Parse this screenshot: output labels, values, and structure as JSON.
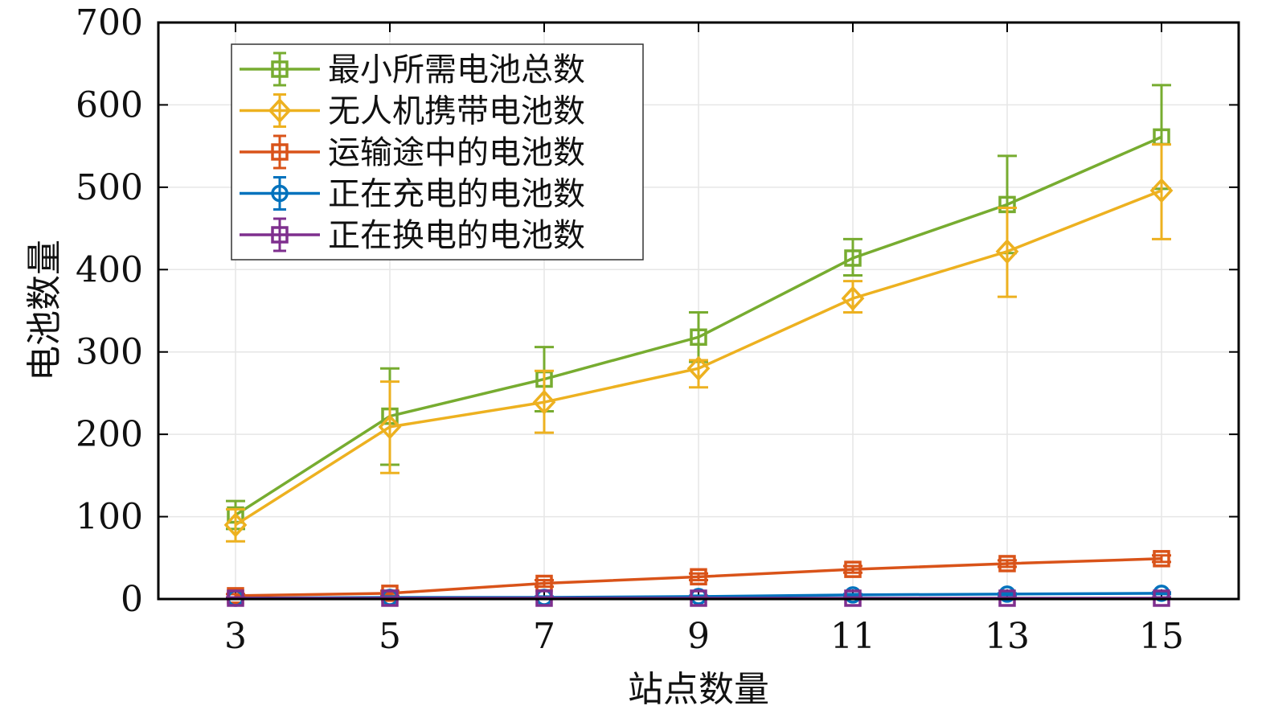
{
  "chart_data": {
    "type": "line",
    "title": "",
    "xlabel": "站点数量",
    "ylabel": "电池数量",
    "xlim": [
      2,
      16
    ],
    "ylim": [
      0,
      700
    ],
    "xticks": [
      3,
      5,
      7,
      9,
      11,
      13,
      15
    ],
    "yticks": [
      0,
      100,
      200,
      300,
      400,
      500,
      600,
      700
    ],
    "grid": true,
    "legend_position": "top-left",
    "x": [
      3,
      5,
      7,
      9,
      11,
      13,
      15
    ],
    "series": [
      {
        "name": "最小所需电池总数",
        "color": "#77ac30",
        "marker": "square",
        "values": [
          102,
          222,
          267,
          318,
          414,
          479,
          561
        ],
        "err_low": [
          85,
          163,
          228,
          288,
          393,
          420,
          498
        ],
        "err_high": [
          119,
          280,
          306,
          348,
          437,
          538,
          624
        ]
      },
      {
        "name": "无人机携带电池数",
        "color": "#edb120",
        "marker": "diamond",
        "values": [
          90,
          209,
          239,
          280,
          365,
          422,
          496
        ],
        "err_low": [
          70,
          153,
          202,
          257,
          348,
          367,
          437
        ],
        "err_high": [
          109,
          264,
          277,
          290,
          386,
          475,
          552
        ]
      },
      {
        "name": "运输途中的电池数",
        "color": "#d95319",
        "marker": "square",
        "values": [
          4,
          7,
          19,
          27,
          36,
          43,
          49
        ],
        "err_low": [
          2,
          4,
          15,
          23,
          32,
          39,
          45
        ],
        "err_high": [
          6,
          10,
          23,
          31,
          40,
          47,
          53
        ]
      },
      {
        "name": "正在充电的电池数",
        "color": "#0072bd",
        "marker": "circle",
        "values": [
          1,
          2,
          2,
          3,
          5,
          6,
          7
        ],
        "err_low": [
          0,
          1,
          1,
          2,
          4,
          5,
          6
        ],
        "err_high": [
          2,
          3,
          3,
          4,
          6,
          7,
          8
        ]
      },
      {
        "name": "正在换电的电池数",
        "color": "#7e2f8e",
        "marker": "square",
        "values": [
          1,
          1,
          1,
          1,
          1,
          1,
          1
        ],
        "err_low": [
          0,
          0,
          0,
          0,
          0,
          0,
          0
        ],
        "err_high": [
          2,
          2,
          2,
          2,
          2,
          2,
          2
        ]
      }
    ]
  }
}
